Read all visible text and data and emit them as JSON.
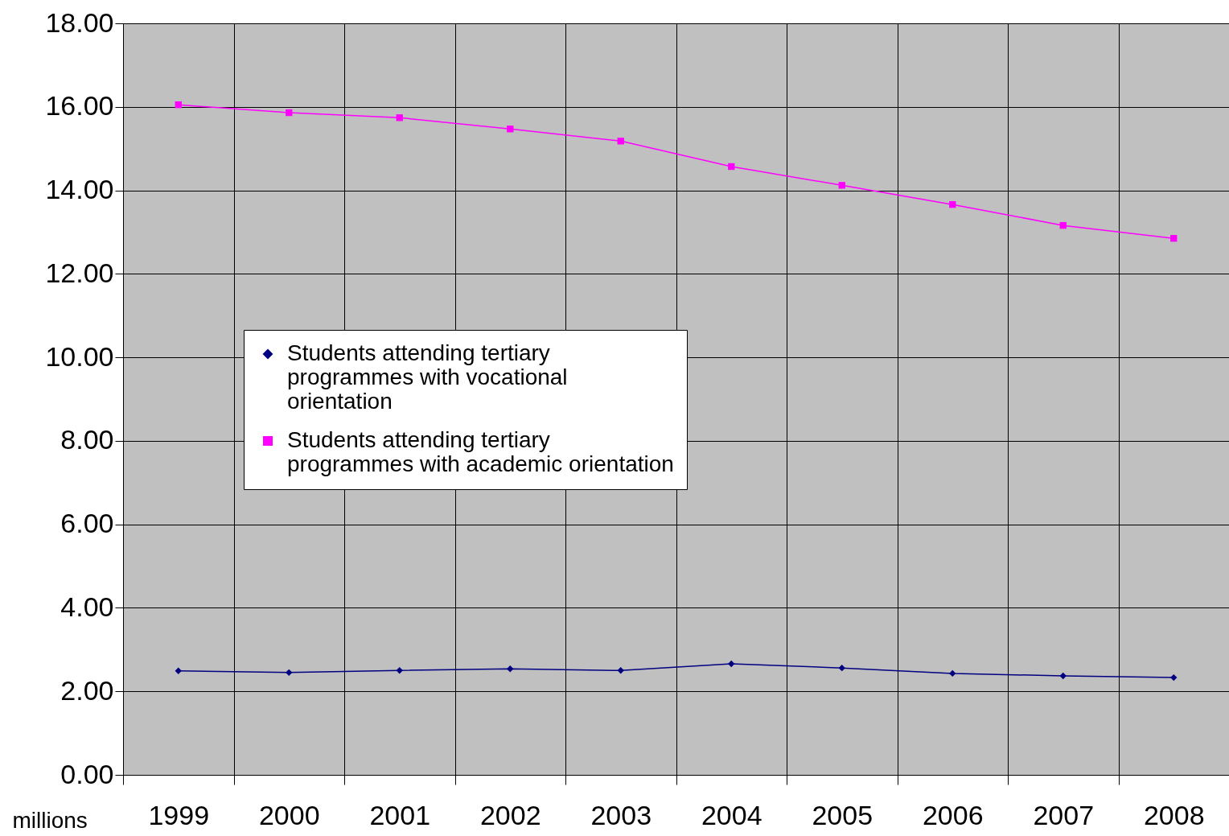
{
  "chart_data": {
    "type": "line",
    "ylabel": "millions",
    "categories": [
      "1999",
      "2000",
      "2001",
      "2002",
      "2003",
      "2004",
      "2005",
      "2006",
      "2007",
      "2008"
    ],
    "series": [
      {
        "name": "Students attending tertiary programmes with vocational orientation",
        "color": "#000080",
        "marker": "diamond",
        "values": [
          2.49,
          2.45,
          2.5,
          2.54,
          2.5,
          2.66,
          2.56,
          2.43,
          2.37,
          2.33
        ]
      },
      {
        "name": "Students attending tertiary programmes with academic orientation",
        "color": "#ff00ff",
        "marker": "square",
        "values": [
          16.05,
          15.86,
          15.74,
          15.47,
          15.18,
          14.57,
          14.12,
          13.66,
          13.16,
          12.85
        ]
      }
    ],
    "ylim": [
      0,
      18
    ],
    "yticks": [
      {
        "value": 0,
        "label": "0.00"
      },
      {
        "value": 2,
        "label": "2.00"
      },
      {
        "value": 4,
        "label": "4.00"
      },
      {
        "value": 6,
        "label": "6.00"
      },
      {
        "value": 8,
        "label": "8.00"
      },
      {
        "value": 10,
        "label": "10.00"
      },
      {
        "value": 12,
        "label": "12.00"
      },
      {
        "value": 14,
        "label": "14.00"
      },
      {
        "value": 16,
        "label": "16.00"
      },
      {
        "value": 18,
        "label": "18.00"
      }
    ],
    "grid": true,
    "legend": "left",
    "line_style": "solid"
  }
}
